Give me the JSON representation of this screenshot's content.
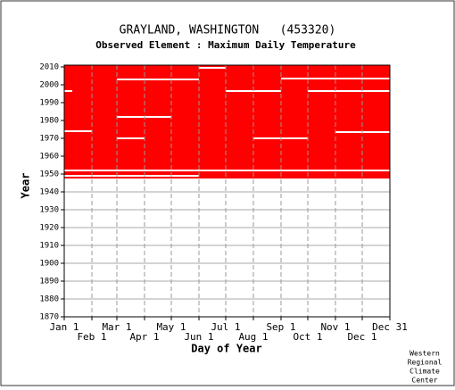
{
  "chart_data": {
    "type": "availability",
    "title": "GRAYLAND, WASHINGTON   (453320)",
    "subtitle": "Observed Element : Maximum Daily Temperature",
    "x_label": "Day of Year",
    "y_label": "Year",
    "credit": [
      "Western",
      "Regional",
      "Climate",
      "Center"
    ],
    "color": "#ff0000",
    "gap_color": "#ffffff",
    "grid": true,
    "xlim": [
      1,
      366
    ],
    "ylim": [
      1870,
      2011
    ],
    "xticks": [
      {
        "value": 1,
        "label": "Jan 1"
      },
      {
        "value": 32,
        "label": "Feb 1"
      },
      {
        "value": 60,
        "label": "Mar 1"
      },
      {
        "value": 91,
        "label": "Apr 1"
      },
      {
        "value": 121,
        "label": "May 1"
      },
      {
        "value": 152,
        "label": "Jun 1"
      },
      {
        "value": 182,
        "label": "Jul 1"
      },
      {
        "value": 213,
        "label": "Aug 1"
      },
      {
        "value": 244,
        "label": "Sep 1"
      },
      {
        "value": 274,
        "label": "Oct 1"
      },
      {
        "value": 305,
        "label": "Nov 1"
      },
      {
        "value": 335,
        "label": "Dec 1"
      },
      {
        "value": 366,
        "label": "Dec 31"
      }
    ],
    "yticks": [
      1870,
      1880,
      1890,
      1900,
      1910,
      1920,
      1930,
      1940,
      1950,
      1960,
      1970,
      1980,
      1990,
      2000,
      2010
    ],
    "blocks": [
      {
        "x": [
          1,
          366
        ],
        "y": [
          1952.5,
          2011
        ]
      },
      {
        "x": [
          1,
          152
        ],
        "y": [
          1949.5,
          1951.5
        ]
      },
      {
        "x": [
          152,
          366
        ],
        "y": [
          1948.5,
          1951.5
        ]
      },
      {
        "x": [
          1,
          366
        ],
        "y": [
          1947.5,
          1948.5
        ]
      }
    ],
    "gaps": [
      {
        "x": [
          60,
          152
        ],
        "y": [
          2002.5,
          2003.5
        ]
      },
      {
        "x": [
          152,
          182
        ],
        "y": [
          2009,
          2010
        ]
      },
      {
        "x": [
          244,
          366
        ],
        "y": [
          2003,
          2004
        ]
      },
      {
        "x": [
          1,
          10
        ],
        "y": [
          1996,
          1997
        ]
      },
      {
        "x": [
          182,
          244
        ],
        "y": [
          1996,
          1997
        ]
      },
      {
        "x": [
          274,
          366
        ],
        "y": [
          1996,
          1997
        ]
      },
      {
        "x": [
          60,
          121
        ],
        "y": [
          1981.5,
          1982.5
        ]
      },
      {
        "x": [
          1,
          32
        ],
        "y": [
          1973.5,
          1974.5
        ]
      },
      {
        "x": [
          60,
          91
        ],
        "y": [
          1969.5,
          1970.5
        ]
      },
      {
        "x": [
          305,
          366
        ],
        "y": [
          1973,
          1974
        ]
      },
      {
        "x": [
          213,
          274
        ],
        "y": [
          1969.5,
          1970.5
        ]
      }
    ]
  }
}
